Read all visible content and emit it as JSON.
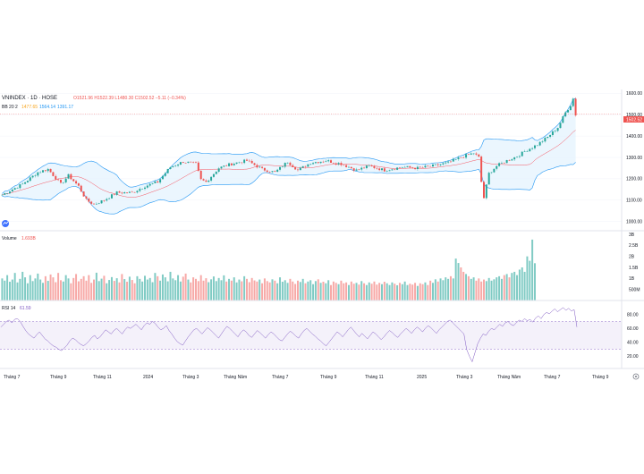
{
  "header": {
    "symbol": "VNINDEX · 1D · HOSE",
    "ohlc": "O1521.96 H1522.39 L1480.30 C1502.52 −5.11 (−0.34%)",
    "bb_name": "BB 20 2",
    "bb_values": [
      "1477.65",
      "1564.14",
      "1391.17"
    ],
    "volume_name": "Volume",
    "volume_value": "1.693B",
    "rsi_name": "RSI 14",
    "rsi_value": "61.59",
    "last_price_tag": "1502.52"
  },
  "colors": {
    "up": "#26a69a",
    "down": "#ef5350",
    "bb_basis": "#f7525f",
    "bb_band": "#2196f3",
    "bb_fill": "#e3f2fd",
    "rsi_line": "#7e57c2",
    "rsi_fill": "#ede7f6",
    "header_ohlc": "#ef5350",
    "bb_value_upper": "#2196f3",
    "bb_value_basis": "#f7a41d"
  },
  "chart_data": {
    "type": "candlestick",
    "x_tick_labels": [
      "Tháng 7",
      "Tháng 9",
      "Tháng 11",
      "2024",
      "Tháng 3",
      "Tháng Năm",
      "Tháng 7",
      "Tháng 9",
      "Tháng 11",
      "2025",
      "Tháng 3",
      "Tháng Năm",
      "Tháng 7",
      "Tháng 9"
    ],
    "price_axis": {
      "ticks": [
        "1600.00",
        "1500.00",
        "1400.00",
        "1300.00",
        "1200.00",
        "1100.00",
        "1000.00"
      ],
      "range": [
        990,
        1610
      ]
    },
    "volume_axis": {
      "ticks": [
        "3B",
        "2.5B",
        "2B",
        "1.5B",
        "1B",
        "500M"
      ],
      "range": [
        0,
        3000
      ]
    },
    "rsi_axis": {
      "ticks": [
        "80.00",
        "60.00",
        "40.00",
        "20.00"
      ],
      "range": [
        5,
        95
      ],
      "bands": [
        70,
        30
      ]
    },
    "price_keypoints": [
      [
        0,
        1125
      ],
      [
        8,
        1175
      ],
      [
        14,
        1230
      ],
      [
        18,
        1245
      ],
      [
        23,
        1175
      ],
      [
        26,
        1215
      ],
      [
        30,
        1165
      ],
      [
        33,
        1100
      ],
      [
        36,
        1080
      ],
      [
        40,
        1100
      ],
      [
        45,
        1135
      ],
      [
        51,
        1135
      ],
      [
        56,
        1165
      ],
      [
        61,
        1185
      ],
      [
        66,
        1255
      ],
      [
        71,
        1280
      ],
      [
        76,
        1270
      ],
      [
        78,
        1195
      ],
      [
        80,
        1185
      ],
      [
        85,
        1250
      ],
      [
        90,
        1270
      ],
      [
        96,
        1285
      ],
      [
        102,
        1245
      ],
      [
        107,
        1230
      ],
      [
        112,
        1280
      ],
      [
        116,
        1240
      ],
      [
        121,
        1275
      ],
      [
        127,
        1285
      ],
      [
        133,
        1270
      ],
      [
        139,
        1240
      ],
      [
        144,
        1260
      ],
      [
        150,
        1240
      ],
      [
        157,
        1255
      ],
      [
        163,
        1250
      ],
      [
        169,
        1260
      ],
      [
        175,
        1275
      ],
      [
        181,
        1305
      ],
      [
        185,
        1320
      ],
      [
        187,
        1300
      ],
      [
        188,
        1185
      ],
      [
        189,
        1110
      ],
      [
        191,
        1225
      ],
      [
        194,
        1260
      ],
      [
        198,
        1285
      ],
      [
        202,
        1305
      ],
      [
        206,
        1335
      ],
      [
        210,
        1360
      ],
      [
        214,
        1395
      ],
      [
        218,
        1440
      ],
      [
        221,
        1510
      ],
      [
        223,
        1545
      ],
      [
        224,
        1575
      ],
      [
        225,
        1500
      ]
    ],
    "volume_series": [
      1000,
      900,
      1150,
      850,
      950,
      1250,
      820,
      980,
      1300,
      1050,
      780,
      1150,
      880,
      1000,
      1220,
      950,
      800,
      1100,
      890,
      1180,
      1050,
      830,
      1250,
      920,
      860,
      1150,
      1000,
      780,
      1020,
      1200,
      870,
      980,
      1100,
      900,
      1150,
      800,
      950,
      1260,
      880,
      990,
      1120,
      780,
      930,
      1060,
      890,
      1010,
      820,
      1200,
      970,
      850,
      1080,
      930,
      780,
      1100,
      980,
      860,
      1120,
      950,
      1020,
      830,
      1250,
      1100,
      900,
      1180,
      1050,
      870,
      1300,
      1000,
      920,
      1150,
      860,
      1080,
      1220,
      950,
      820,
      1050,
      980,
      880,
      1150,
      900,
      1010,
      830,
      960,
      1090,
      880,
      1020,
      920,
      1140,
      860,
      980,
      900,
      1050,
      820,
      950,
      870,
      1100,
      980,
      830,
      1020,
      910,
      860,
      950,
      780,
      1000,
      880,
      820,
      960,
      900,
      780,
      1050,
      850,
      920,
      800,
      980,
      860,
      750,
      900,
      840,
      980,
      780,
      860,
      920,
      740,
      880,
      960,
      800,
      850,
      780,
      920,
      700,
      860,
      800,
      740,
      900,
      780,
      820,
      700,
      860,
      760,
      800,
      720,
      880,
      780,
      700,
      820,
      760,
      860,
      720,
      800,
      740,
      850,
      780,
      700,
      820,
      760,
      690,
      800,
      740,
      860,
      700,
      760,
      720,
      800,
      660,
      780,
      740,
      820,
      700,
      900,
      800,
      960,
      860,
      1000,
      920,
      1050,
      980,
      1100,
      1000,
      1900,
      1700,
      1500,
      1300,
      1200,
      1100,
      980,
      1050,
      900,
      1000,
      860,
      950,
      880,
      1020,
      900,
      960,
      1050,
      1100,
      980,
      1150,
      1200,
      1050,
      1250,
      1300,
      1150,
      1400,
      1500,
      1300,
      2000,
      1800,
      2760,
      1690
    ],
    "rsi_series": [
      62,
      66,
      70,
      72,
      68,
      73,
      74,
      70,
      63,
      57,
      52,
      49,
      46,
      51,
      55,
      50,
      45,
      42,
      38,
      35,
      33,
      30,
      28,
      32,
      36,
      42,
      46,
      44,
      40,
      37,
      35,
      38,
      42,
      47,
      50,
      45,
      48,
      53,
      58,
      55,
      52,
      57,
      60,
      56,
      52,
      58,
      62,
      60,
      63,
      66,
      62,
      58,
      64,
      68,
      66,
      70,
      67,
      62,
      58,
      60,
      64,
      57,
      52,
      46,
      41,
      38,
      36,
      42,
      48,
      53,
      58,
      60,
      56,
      52,
      57,
      61,
      58,
      54,
      50,
      46,
      52,
      58,
      63,
      60,
      56,
      52,
      48,
      54,
      58,
      55,
      50,
      47,
      52,
      57,
      54,
      50,
      46,
      51,
      55,
      52,
      48,
      44,
      42,
      47,
      52,
      56,
      53,
      49,
      46,
      52,
      57,
      60,
      56,
      52,
      49,
      45,
      42,
      38,
      35,
      40,
      45,
      50,
      55,
      52,
      48,
      53,
      58,
      62,
      57,
      52,
      48,
      53,
      49,
      45,
      50,
      55,
      52,
      48,
      44,
      48,
      53,
      57,
      54,
      50,
      47,
      52,
      56,
      60,
      57,
      53,
      58,
      62,
      59,
      55,
      60,
      64,
      61,
      57,
      53,
      58,
      62,
      66,
      70,
      72,
      68,
      64,
      60,
      56,
      52,
      30,
      20,
      12,
      25,
      38,
      46,
      52,
      50,
      56,
      60,
      58,
      62,
      66,
      63,
      68,
      70,
      66,
      64,
      68,
      72,
      70,
      74,
      71,
      73,
      69,
      75,
      78,
      74,
      80,
      83,
      81,
      85,
      88,
      84,
      87,
      90,
      86,
      89,
      85,
      87,
      62
    ]
  }
}
